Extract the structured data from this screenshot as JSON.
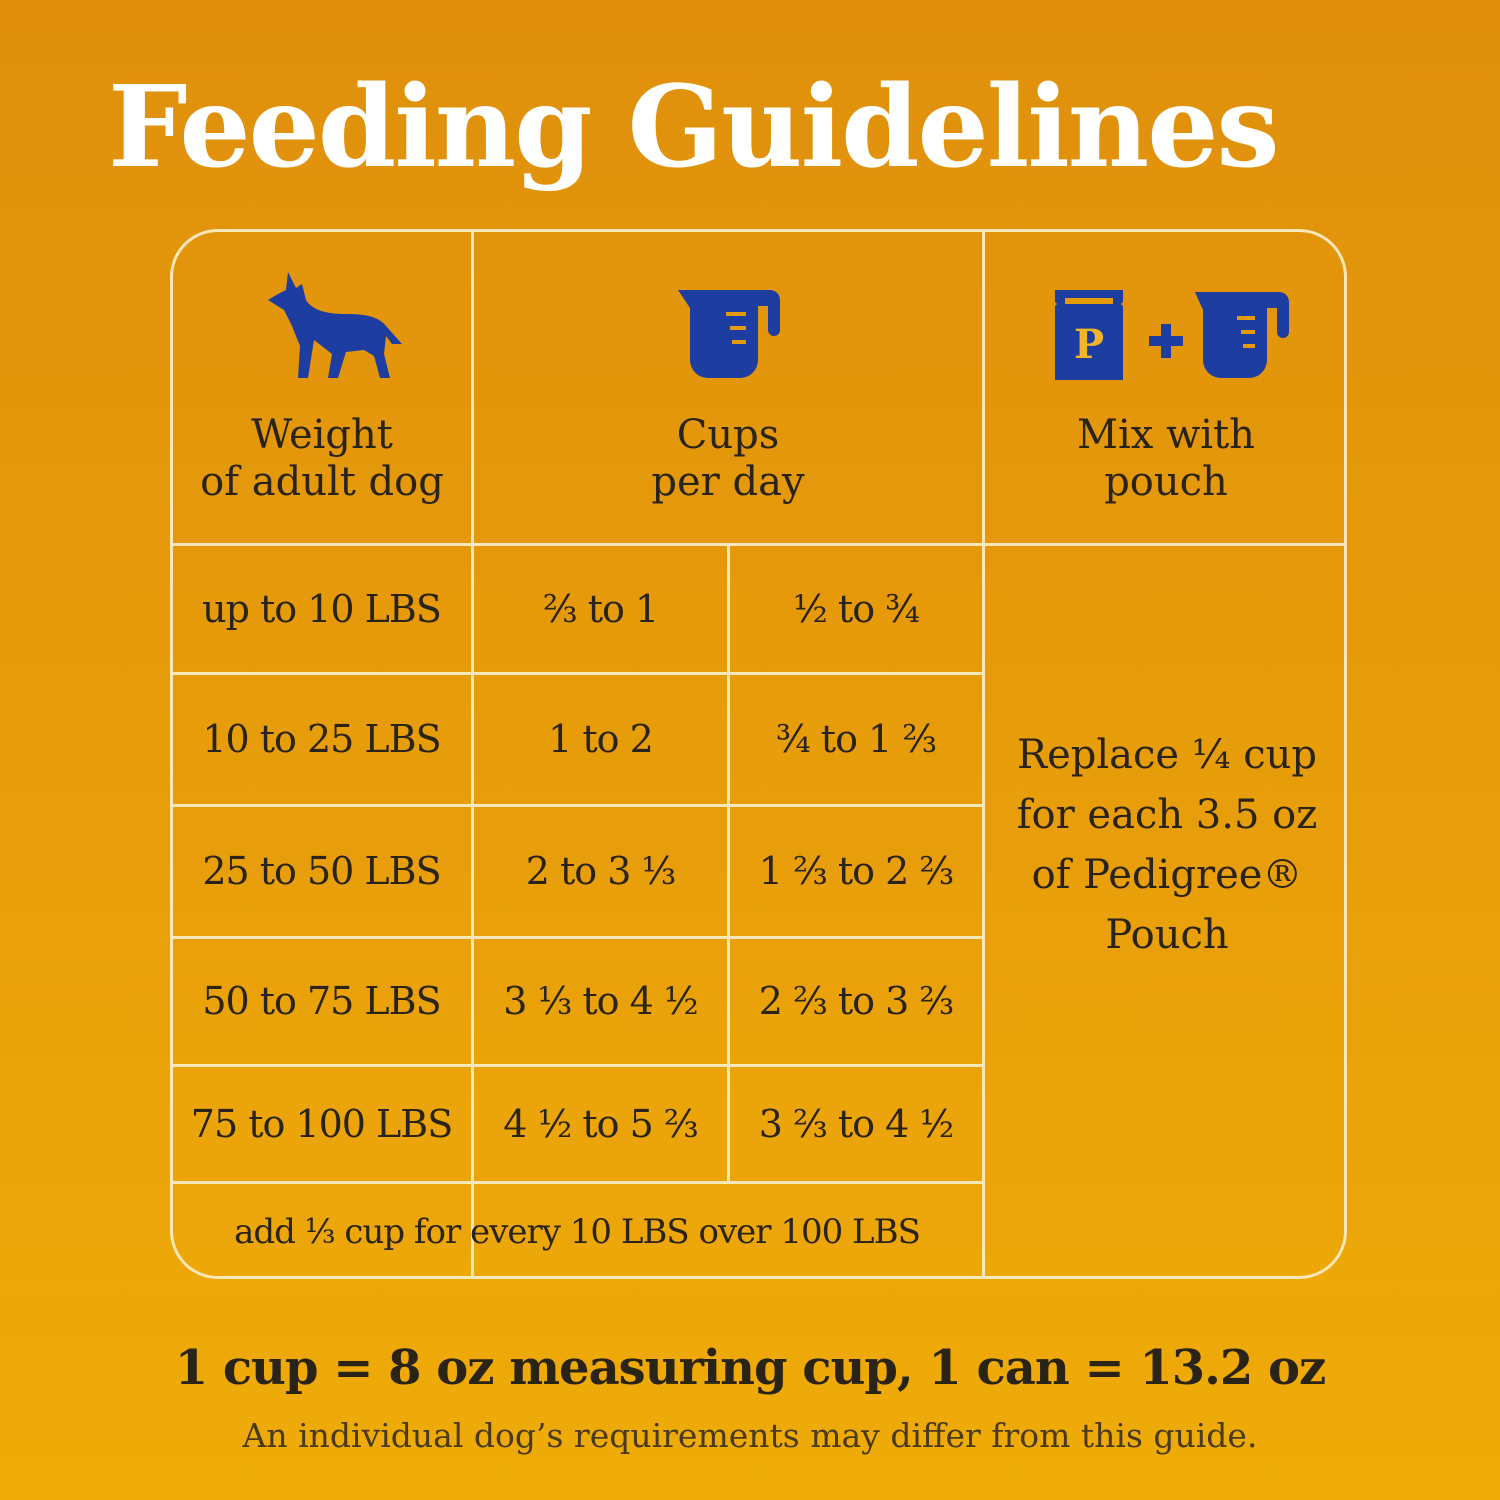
{
  "title": "Feeding Guidelines",
  "colors": {
    "icon": "#1d3ea0",
    "text": "#2a2418",
    "title": "#ffffff",
    "lines": "#fbe7b8",
    "background": "#e79c0a"
  },
  "headers": [
    {
      "icon": "dog-icon",
      "line1": "Weight",
      "line2": "of adult dog"
    },
    {
      "icon": "measuring-cup-icon",
      "line1": "Cups",
      "line2": "per day"
    },
    {
      "icon": "pouch-plus-cup-icon",
      "line1": "Mix with",
      "line2": "pouch",
      "pouch_letter": "P"
    }
  ],
  "rows": [
    {
      "weight": "up to 10 LBS",
      "cups": "²⁄₃ to 1",
      "mix": "¹⁄₂ to ³⁄₄"
    },
    {
      "weight": "10 to 25 LBS",
      "cups": "1 to 2",
      "mix": "³⁄₄ to 1 ²⁄₃"
    },
    {
      "weight": "25 to 50 LBS",
      "cups": "2 to 3 ¹⁄₃",
      "mix": "1 ²⁄₃ to 2 ²⁄₃"
    },
    {
      "weight": "50 to 75 LBS",
      "cups": "3 ¹⁄₃ to 4 ¹⁄₂",
      "mix": "2 ²⁄₃ to 3 ²⁄₃"
    },
    {
      "weight": "75 to 100 LBS",
      "cups": "4 ¹⁄₂ to 5 ²⁄₃",
      "mix": "3 ²⁄₃ to 4 ¹⁄₂"
    }
  ],
  "extra_note": "add ¹⁄₃ cup for every 10 LBS over 100 LBS",
  "mix_note": [
    "Replace ¼ cup",
    "for each 3.5 oz",
    "of Pedigree®",
    "Pouch"
  ],
  "footer": {
    "conversion": "1 cup = 8 oz measuring cup, 1 can = 13.2 oz",
    "disclaimer": "An individual dog’s requirements may differ from this guide."
  }
}
